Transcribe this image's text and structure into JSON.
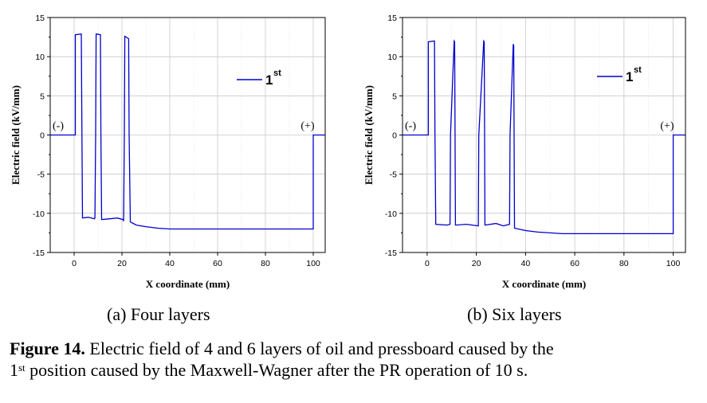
{
  "chart_data": [
    {
      "type": "line",
      "title": "",
      "subplot_label": "(a) Four layers",
      "xlabel": "X coordinate (mm)",
      "ylabel": "Electric field (kV/mm)",
      "xlim": [
        -10,
        105
      ],
      "ylim": [
        -15,
        15
      ],
      "x_ticks": [
        0,
        20,
        40,
        60,
        80,
        100
      ],
      "y_ticks": [
        -15,
        -10,
        -5,
        0,
        5,
        10,
        15
      ],
      "grid": true,
      "legend": {
        "position": "top-right",
        "label": "1",
        "label_sup": "st"
      },
      "annotations": [
        "(-)",
        "(+)"
      ],
      "series": [
        {
          "name": "1st",
          "color": "#0000cc",
          "x": [
            -10,
            0,
            0.5,
            0.5,
            3,
            3.2,
            3.5,
            6,
            8.5,
            8.7,
            9,
            9.2,
            11,
            11.2,
            11.5,
            15,
            18,
            20.5,
            20.7,
            21,
            21.2,
            22.8,
            23,
            23.5,
            26,
            30,
            35,
            40,
            100,
            100,
            105
          ],
          "y": [
            0,
            0,
            0,
            12.8,
            12.9,
            3,
            -10.6,
            -10.5,
            -10.7,
            -10.6,
            0,
            12.9,
            12.8,
            0,
            -10.8,
            -10.7,
            -10.6,
            -10.8,
            -11,
            0,
            12.6,
            12.3,
            0,
            -11.1,
            -11.5,
            -11.7,
            -11.9,
            -12,
            -12,
            0,
            0
          ]
        }
      ]
    },
    {
      "type": "line",
      "title": "",
      "subplot_label": "(b) Six layers",
      "xlabel": "X coordinate (mm)",
      "ylabel": "Electric field (kV/mm)",
      "xlim": [
        -10,
        105
      ],
      "ylim": [
        -15,
        15
      ],
      "x_ticks": [
        0,
        20,
        40,
        60,
        80,
        100
      ],
      "y_ticks": [
        -15,
        -10,
        -5,
        0,
        5,
        10,
        15
      ],
      "grid": true,
      "legend": {
        "position": "top-right",
        "label": "1",
        "label_sup": "st"
      },
      "annotations": [
        "(-)",
        "(+)"
      ],
      "series": [
        {
          "name": "1st",
          "color": "#0000cc",
          "x": [
            -10,
            0,
            0.5,
            0.5,
            3,
            3.2,
            3.5,
            8,
            9.3,
            9.5,
            11,
            11.2,
            11.5,
            16,
            20.8,
            21,
            23,
            23.2,
            23.5,
            28,
            31,
            33.5,
            33.7,
            35,
            35.2,
            35.5,
            40,
            45,
            55,
            100,
            100,
            105
          ],
          "y": [
            0,
            0,
            0,
            11.9,
            12,
            0,
            -11.4,
            -11.5,
            -11.4,
            0,
            12,
            11.9,
            -11.5,
            -11.4,
            -11.6,
            0,
            12,
            11.9,
            -11.5,
            -11.3,
            -11.6,
            -11.4,
            0,
            11.6,
            11.4,
            -11.9,
            -12.2,
            -12.4,
            -12.6,
            -12.6,
            0,
            0
          ]
        }
      ]
    }
  ],
  "caption": {
    "prefix": "Figure 14.",
    "line1": " Electric field of 4 and 6 layers of oil and pressboard caused by the",
    "line2_start": "1",
    "line2_sup": "st",
    "line2_rest": " position caused by the Maxwell-Wagner after the PR operation of 10 s."
  }
}
